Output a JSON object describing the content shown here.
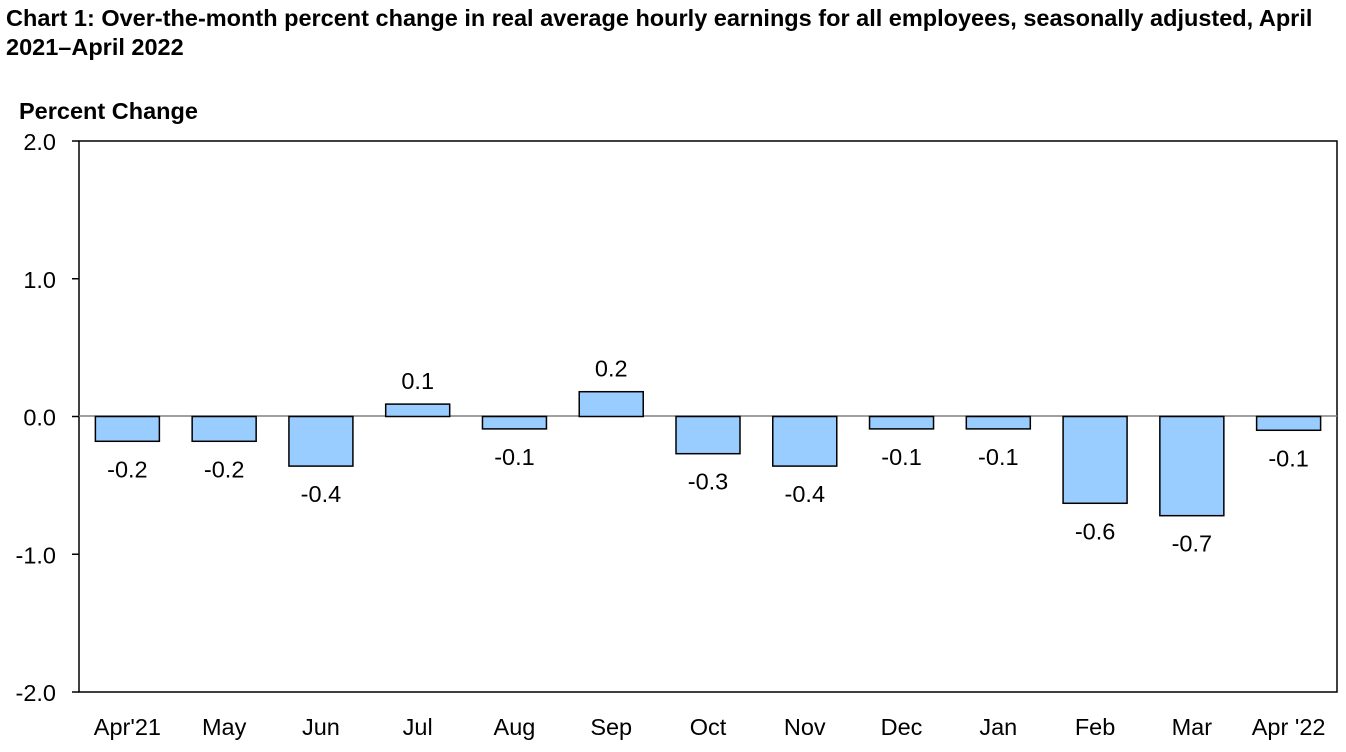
{
  "chart_data": {
    "type": "bar",
    "title": "Chart 1: Over-the-month percent change in real average hourly earnings for all employees, seasonally adjusted, April 2021–April 2022",
    "ylabel": "Percent Change",
    "xlabel": "",
    "ylim": [
      -2.0,
      2.0
    ],
    "yticks": [
      "2.0",
      "1.0",
      "0.0",
      "-1.0",
      "-2.0"
    ],
    "ytick_values": [
      2.0,
      1.0,
      0.0,
      -1.0,
      -2.0
    ],
    "categories": [
      "Apr'21",
      "May",
      "Jun",
      "Jul",
      "Aug",
      "Sep",
      "Oct",
      "Nov",
      "Dec",
      "Jan",
      "Feb",
      "Mar",
      "Apr '22"
    ],
    "values": [
      -0.18,
      -0.18,
      -0.36,
      0.09,
      -0.09,
      0.18,
      -0.27,
      -0.36,
      -0.09,
      -0.09,
      -0.63,
      -0.72,
      -0.1
    ],
    "data_labels": [
      "-0.2",
      "-0.2",
      "-0.4",
      "0.1",
      "-0.1",
      "0.2",
      "-0.3",
      "-0.4",
      "-0.1",
      "-0.1",
      "-0.6",
      "-0.7",
      "-0.1"
    ],
    "bar_color": "#99ccff",
    "bar_edge_color": "#000000",
    "grid": false,
    "legend": "none"
  }
}
